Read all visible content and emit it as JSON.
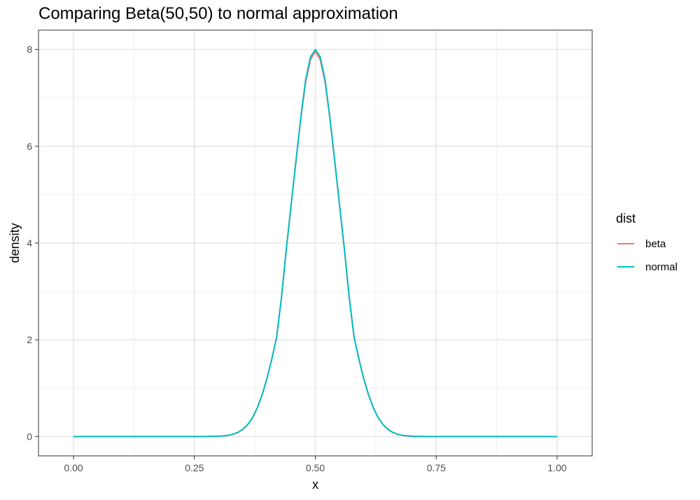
{
  "chart_data": {
    "type": "line",
    "title": "Comparing Beta(50,50) to normal approximation",
    "xlabel": "x",
    "ylabel": "density",
    "xlim": [
      -0.0725,
      1.0725
    ],
    "ylim": [
      -0.4,
      8.4
    ],
    "x_ticks": [
      0,
      0.25,
      0.5,
      0.75,
      1
    ],
    "x_tick_labels": [
      "0.00",
      "0.25",
      "0.50",
      "0.75",
      "1.00"
    ],
    "y_ticks": [
      0,
      2,
      4,
      6,
      8
    ],
    "y_tick_labels": [
      "0",
      "2",
      "4",
      "6",
      "8"
    ],
    "grid": true,
    "legend": {
      "title": "dist",
      "position": "right"
    },
    "x": [
      0.0,
      0.01,
      0.02,
      0.03,
      0.04,
      0.05,
      0.06,
      0.07,
      0.08,
      0.09,
      0.1,
      0.11,
      0.12,
      0.13,
      0.14,
      0.15,
      0.16,
      0.17,
      0.18,
      0.19,
      0.2,
      0.21,
      0.22,
      0.23,
      0.24,
      0.25,
      0.26,
      0.27,
      0.28,
      0.29,
      0.3,
      0.31,
      0.32,
      0.33,
      0.34,
      0.35,
      0.36,
      0.37,
      0.38,
      0.39,
      0.4,
      0.41,
      0.42,
      0.43,
      0.44,
      0.45,
      0.46,
      0.47,
      0.48,
      0.49,
      0.5,
      0.51,
      0.52,
      0.53,
      0.54,
      0.55,
      0.56,
      0.57,
      0.58,
      0.59,
      0.6,
      0.61,
      0.62,
      0.63,
      0.64,
      0.65,
      0.66,
      0.67,
      0.68,
      0.69,
      0.7,
      0.71,
      0.72,
      0.73,
      0.74,
      0.75,
      0.76,
      0.77,
      0.78,
      0.79,
      0.8,
      0.81,
      0.82,
      0.83,
      0.84,
      0.85,
      0.86,
      0.87,
      0.88,
      0.89,
      0.9,
      0.91,
      0.92,
      0.93,
      0.94,
      0.95,
      0.96,
      0.97,
      0.98,
      0.99,
      1.0
    ],
    "series": [
      {
        "name": "beta",
        "color": "#F8766D",
        "values": [
          0,
          0,
          0,
          0,
          0,
          0,
          0,
          0,
          0,
          0,
          0,
          0,
          0,
          0,
          0,
          0,
          0,
          0,
          0,
          0,
          0,
          0,
          0,
          0,
          0,
          0,
          0,
          0,
          0.001,
          0.003,
          0.006,
          0.012,
          0.024,
          0.046,
          0.084,
          0.146,
          0.243,
          0.388,
          0.592,
          0.864,
          1.206,
          1.611,
          2.062,
          2.88,
          3.87,
          4.78,
          5.69,
          6.58,
          7.33,
          7.79,
          7.96,
          7.79,
          7.33,
          6.58,
          5.69,
          4.78,
          3.87,
          2.88,
          2.062,
          1.611,
          1.206,
          0.864,
          0.592,
          0.388,
          0.243,
          0.146,
          0.084,
          0.046,
          0.024,
          0.012,
          0.006,
          0.003,
          0.001,
          0,
          0,
          0,
          0,
          0,
          0,
          0,
          0,
          0,
          0,
          0,
          0,
          0,
          0,
          0,
          0,
          0,
          0,
          0,
          0,
          0,
          0,
          0,
          0,
          0,
          0,
          0,
          0
        ]
      },
      {
        "name": "normal",
        "color": "#00BFC4",
        "values": [
          0,
          0,
          0,
          0,
          0,
          0,
          0,
          0,
          0,
          0,
          0,
          0,
          0,
          0,
          0,
          0,
          0,
          0,
          0,
          0,
          0,
          0,
          0,
          0,
          0,
          0,
          0,
          0,
          0.001,
          0.003,
          0.007,
          0.013,
          0.026,
          0.048,
          0.087,
          0.15,
          0.247,
          0.39,
          0.59,
          0.86,
          1.197,
          1.6,
          2.055,
          2.88,
          3.88,
          4.8,
          5.71,
          6.6,
          7.38,
          7.85,
          8.0,
          7.85,
          7.38,
          6.6,
          5.71,
          4.8,
          3.88,
          2.88,
          2.055,
          1.6,
          1.197,
          0.86,
          0.59,
          0.39,
          0.247,
          0.15,
          0.087,
          0.048,
          0.026,
          0.013,
          0.007,
          0.003,
          0.001,
          0,
          0,
          0,
          0,
          0,
          0,
          0,
          0,
          0,
          0,
          0,
          0,
          0,
          0,
          0,
          0,
          0,
          0,
          0,
          0,
          0,
          0,
          0,
          0,
          0,
          0,
          0,
          0
        ]
      }
    ]
  }
}
